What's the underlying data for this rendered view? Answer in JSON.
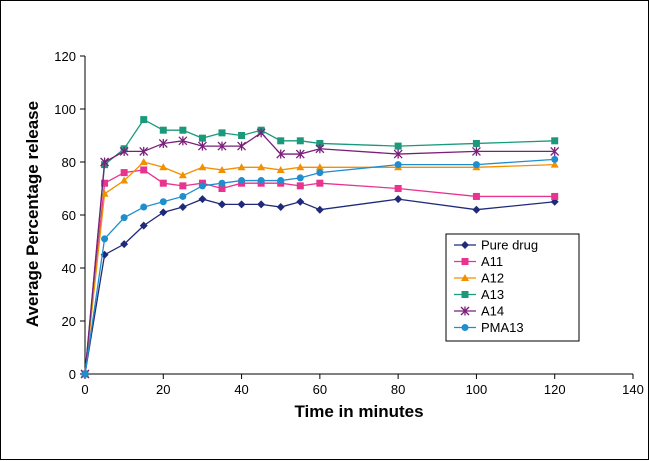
{
  "chart_data": {
    "type": "line",
    "xlabel": "Time in minutes",
    "ylabel": "Average Percentage release",
    "xlim": [
      0,
      140
    ],
    "ylim": [
      0,
      120
    ],
    "x_ticks": [
      0,
      20,
      40,
      60,
      80,
      100,
      120,
      140
    ],
    "y_ticks": [
      0,
      20,
      40,
      60,
      80,
      100,
      120
    ],
    "grid": false,
    "legend_position": "right-inside",
    "series": [
      {
        "name": "Pure drug",
        "color": "#1f2a7a",
        "marker": "diamond",
        "x": [
          0,
          5,
          10,
          15,
          20,
          25,
          30,
          35,
          40,
          45,
          50,
          55,
          60,
          80,
          100,
          120
        ],
        "y": [
          0,
          45,
          49,
          56,
          61,
          63,
          66,
          64,
          64,
          64,
          63,
          65,
          62,
          66,
          62,
          65
        ]
      },
      {
        "name": "A11",
        "color": "#e8338f",
        "marker": "square",
        "x": [
          0,
          5,
          10,
          15,
          20,
          25,
          30,
          35,
          40,
          45,
          50,
          55,
          60,
          80,
          100,
          120
        ],
        "y": [
          0,
          72,
          76,
          77,
          72,
          71,
          72,
          70,
          72,
          72,
          72,
          71,
          72,
          70,
          67,
          67
        ]
      },
      {
        "name": "A12",
        "color": "#f29000",
        "marker": "triangle",
        "x": [
          0,
          5,
          10,
          15,
          20,
          25,
          30,
          35,
          40,
          45,
          50,
          55,
          60,
          80,
          100,
          120
        ],
        "y": [
          0,
          68,
          73,
          80,
          78,
          75,
          78,
          77,
          78,
          78,
          77,
          78,
          78,
          78,
          78,
          79
        ]
      },
      {
        "name": "A13",
        "color": "#1a9a7a",
        "marker": "square",
        "x": [
          0,
          5,
          10,
          15,
          20,
          25,
          30,
          35,
          40,
          45,
          50,
          55,
          60,
          80,
          100,
          120
        ],
        "y": [
          0,
          79,
          85,
          96,
          92,
          92,
          89,
          91,
          90,
          92,
          88,
          88,
          87,
          86,
          87,
          88
        ]
      },
      {
        "name": "A14",
        "color": "#7a1f7a",
        "marker": "asterisk",
        "x": [
          0,
          5,
          10,
          15,
          20,
          25,
          30,
          35,
          40,
          45,
          50,
          55,
          60,
          80,
          100,
          120
        ],
        "y": [
          0,
          80,
          84,
          84,
          87,
          88,
          86,
          86,
          86,
          91,
          83,
          83,
          85,
          83,
          84,
          84
        ]
      },
      {
        "name": "PMA13",
        "color": "#1f8ecf",
        "marker": "circle",
        "x": [
          0,
          5,
          10,
          15,
          20,
          25,
          30,
          35,
          40,
          45,
          50,
          55,
          60,
          80,
          100,
          120
        ],
        "y": [
          0,
          51,
          59,
          63,
          65,
          67,
          71,
          72,
          73,
          73,
          73,
          74,
          76,
          79,
          79,
          81
        ]
      }
    ]
  }
}
